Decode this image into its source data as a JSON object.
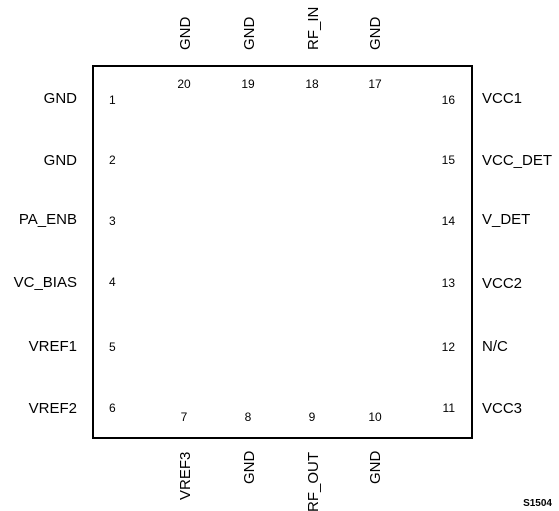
{
  "package": {
    "outline_color": "#000000",
    "pins": {
      "left": [
        {
          "number": "1",
          "name": "GND"
        },
        {
          "number": "2",
          "name": "GND"
        },
        {
          "number": "3",
          "name": "PA_ENB"
        },
        {
          "number": "4",
          "name": "VC_BIAS"
        },
        {
          "number": "5",
          "name": "VREF1"
        },
        {
          "number": "6",
          "name": "VREF2"
        }
      ],
      "bottom": [
        {
          "number": "7",
          "name": "VREF3"
        },
        {
          "number": "8",
          "name": "GND"
        },
        {
          "number": "9",
          "name": "RF_OUT"
        },
        {
          "number": "10",
          "name": "GND"
        }
      ],
      "right": [
        {
          "number": "11",
          "name": "VCC3"
        },
        {
          "number": "12",
          "name": "N/C"
        },
        {
          "number": "13",
          "name": "VCC2"
        },
        {
          "number": "14",
          "name": "V_DET"
        },
        {
          "number": "15",
          "name": "VCC_DET"
        },
        {
          "number": "16",
          "name": "VCC1"
        }
      ],
      "top": [
        {
          "number": "17",
          "name": "GND"
        },
        {
          "number": "18",
          "name": "RF_IN"
        },
        {
          "number": "19",
          "name": "GND"
        },
        {
          "number": "20",
          "name": "GND"
        }
      ]
    }
  },
  "figure_id": "S1504"
}
